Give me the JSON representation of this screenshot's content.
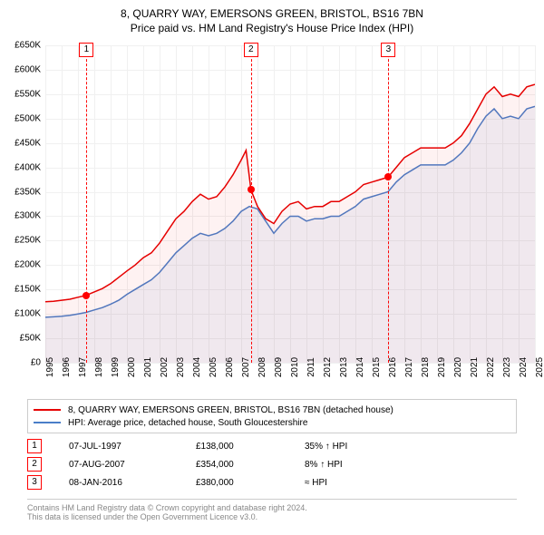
{
  "title_line1": "8, QUARRY WAY, EMERSONS GREEN, BRISTOL, BS16 7BN",
  "title_line2": "Price paid vs. HM Land Registry's House Price Index (HPI)",
  "chart": {
    "type": "line",
    "background_color": "#ffffff",
    "grid_color": "#f0f0f0",
    "x_axis": {
      "min_year": 1995,
      "max_year": 2025,
      "tick_step": 1,
      "labels": [
        "1995",
        "1996",
        "1997",
        "1998",
        "1999",
        "2000",
        "2001",
        "2002",
        "2003",
        "2004",
        "2005",
        "2006",
        "2007",
        "2008",
        "2009",
        "2010",
        "2011",
        "2012",
        "2013",
        "2014",
        "2015",
        "2016",
        "2017",
        "2018",
        "2019",
        "2020",
        "2021",
        "2022",
        "2023",
        "2024",
        "2025"
      ],
      "rotation": -90,
      "fontsize": 10
    },
    "y_axis": {
      "min": 0,
      "max": 650000,
      "tick_step": 50000,
      "labels": [
        "£0",
        "£50K",
        "£100K",
        "£150K",
        "£200K",
        "£250K",
        "£300K",
        "£350K",
        "£400K",
        "£450K",
        "£500K",
        "£550K",
        "£600K",
        "£650K"
      ],
      "fontsize": 10
    },
    "series": [
      {
        "name": "property",
        "color": "#e60000",
        "line_width": 1.5,
        "fill_color": "rgba(230,0,0,0.05)",
        "points": [
          [
            1995.0,
            125000
          ],
          [
            1995.5,
            126000
          ],
          [
            1996.0,
            128000
          ],
          [
            1996.5,
            130000
          ],
          [
            1997.0,
            134000
          ],
          [
            1997.5,
            138000
          ],
          [
            1998.0,
            145000
          ],
          [
            1998.5,
            152000
          ],
          [
            1999.0,
            162000
          ],
          [
            1999.5,
            175000
          ],
          [
            2000.0,
            188000
          ],
          [
            2000.5,
            200000
          ],
          [
            2001.0,
            215000
          ],
          [
            2001.5,
            225000
          ],
          [
            2002.0,
            245000
          ],
          [
            2002.5,
            270000
          ],
          [
            2003.0,
            295000
          ],
          [
            2003.5,
            310000
          ],
          [
            2004.0,
            330000
          ],
          [
            2004.5,
            345000
          ],
          [
            2005.0,
            335000
          ],
          [
            2005.5,
            340000
          ],
          [
            2006.0,
            360000
          ],
          [
            2006.5,
            385000
          ],
          [
            2007.0,
            415000
          ],
          [
            2007.3,
            435000
          ],
          [
            2007.6,
            354000
          ],
          [
            2008.0,
            320000
          ],
          [
            2008.5,
            295000
          ],
          [
            2009.0,
            285000
          ],
          [
            2009.5,
            310000
          ],
          [
            2010.0,
            325000
          ],
          [
            2010.5,
            330000
          ],
          [
            2011.0,
            315000
          ],
          [
            2011.5,
            320000
          ],
          [
            2012.0,
            320000
          ],
          [
            2012.5,
            330000
          ],
          [
            2013.0,
            330000
          ],
          [
            2013.5,
            340000
          ],
          [
            2014.0,
            350000
          ],
          [
            2014.5,
            365000
          ],
          [
            2015.0,
            370000
          ],
          [
            2015.5,
            375000
          ],
          [
            2016.0,
            380000
          ],
          [
            2016.5,
            400000
          ],
          [
            2017.0,
            420000
          ],
          [
            2017.5,
            430000
          ],
          [
            2018.0,
            440000
          ],
          [
            2018.5,
            440000
          ],
          [
            2019.0,
            440000
          ],
          [
            2019.5,
            440000
          ],
          [
            2020.0,
            450000
          ],
          [
            2020.5,
            465000
          ],
          [
            2021.0,
            490000
          ],
          [
            2021.5,
            520000
          ],
          [
            2022.0,
            550000
          ],
          [
            2022.5,
            565000
          ],
          [
            2023.0,
            545000
          ],
          [
            2023.5,
            550000
          ],
          [
            2024.0,
            545000
          ],
          [
            2024.5,
            565000
          ],
          [
            2025.0,
            570000
          ]
        ]
      },
      {
        "name": "hpi",
        "color": "#4a7ec8",
        "line_width": 1.5,
        "fill_color": "rgba(74,126,200,0.08)",
        "points": [
          [
            1995.0,
            93000
          ],
          [
            1995.5,
            94000
          ],
          [
            1996.0,
            95000
          ],
          [
            1996.5,
            97000
          ],
          [
            1997.0,
            100000
          ],
          [
            1997.5,
            103000
          ],
          [
            1998.0,
            108000
          ],
          [
            1998.5,
            113000
          ],
          [
            1999.0,
            120000
          ],
          [
            1999.5,
            128000
          ],
          [
            2000.0,
            140000
          ],
          [
            2000.5,
            150000
          ],
          [
            2001.0,
            160000
          ],
          [
            2001.5,
            170000
          ],
          [
            2002.0,
            185000
          ],
          [
            2002.5,
            205000
          ],
          [
            2003.0,
            225000
          ],
          [
            2003.5,
            240000
          ],
          [
            2004.0,
            255000
          ],
          [
            2004.5,
            265000
          ],
          [
            2005.0,
            260000
          ],
          [
            2005.5,
            265000
          ],
          [
            2006.0,
            275000
          ],
          [
            2006.5,
            290000
          ],
          [
            2007.0,
            310000
          ],
          [
            2007.5,
            320000
          ],
          [
            2008.0,
            315000
          ],
          [
            2008.5,
            290000
          ],
          [
            2009.0,
            265000
          ],
          [
            2009.5,
            285000
          ],
          [
            2010.0,
            300000
          ],
          [
            2010.5,
            300000
          ],
          [
            2011.0,
            290000
          ],
          [
            2011.5,
            295000
          ],
          [
            2012.0,
            295000
          ],
          [
            2012.5,
            300000
          ],
          [
            2013.0,
            300000
          ],
          [
            2013.5,
            310000
          ],
          [
            2014.0,
            320000
          ],
          [
            2014.5,
            335000
          ],
          [
            2015.0,
            340000
          ],
          [
            2015.5,
            345000
          ],
          [
            2016.0,
            350000
          ],
          [
            2016.5,
            370000
          ],
          [
            2017.0,
            385000
          ],
          [
            2017.5,
            395000
          ],
          [
            2018.0,
            405000
          ],
          [
            2018.5,
            405000
          ],
          [
            2019.0,
            405000
          ],
          [
            2019.5,
            405000
          ],
          [
            2020.0,
            415000
          ],
          [
            2020.5,
            430000
          ],
          [
            2021.0,
            450000
          ],
          [
            2021.5,
            480000
          ],
          [
            2022.0,
            505000
          ],
          [
            2022.5,
            520000
          ],
          [
            2023.0,
            500000
          ],
          [
            2023.5,
            505000
          ],
          [
            2024.0,
            500000
          ],
          [
            2024.5,
            520000
          ],
          [
            2025.0,
            525000
          ]
        ]
      }
    ],
    "markers": [
      {
        "num": "1",
        "year": 1997.52,
        "price": 138000
      },
      {
        "num": "2",
        "year": 2007.6,
        "price": 354000
      },
      {
        "num": "3",
        "year": 2016.02,
        "price": 380000
      }
    ],
    "marker_box_color": "#ff0000",
    "marker_dot_color": "#ff0000"
  },
  "legend": {
    "items": [
      {
        "color": "#e60000",
        "label": "8, QUARRY WAY, EMERSONS GREEN, BRISTOL, BS16 7BN (detached house)"
      },
      {
        "color": "#4a7ec8",
        "label": "HPI: Average price, detached house, South Gloucestershire"
      }
    ]
  },
  "table": {
    "rows": [
      {
        "num": "1",
        "date": "07-JUL-1997",
        "price": "£138,000",
        "pct": "35% ↑ HPI"
      },
      {
        "num": "2",
        "date": "07-AUG-2007",
        "price": "£354,000",
        "pct": "8% ↑ HPI"
      },
      {
        "num": "3",
        "date": "08-JAN-2016",
        "price": "£380,000",
        "pct": "≈ HPI"
      }
    ]
  },
  "footer": {
    "line1": "Contains HM Land Registry data © Crown copyright and database right 2024.",
    "line2": "This data is licensed under the Open Government Licence v3.0."
  }
}
